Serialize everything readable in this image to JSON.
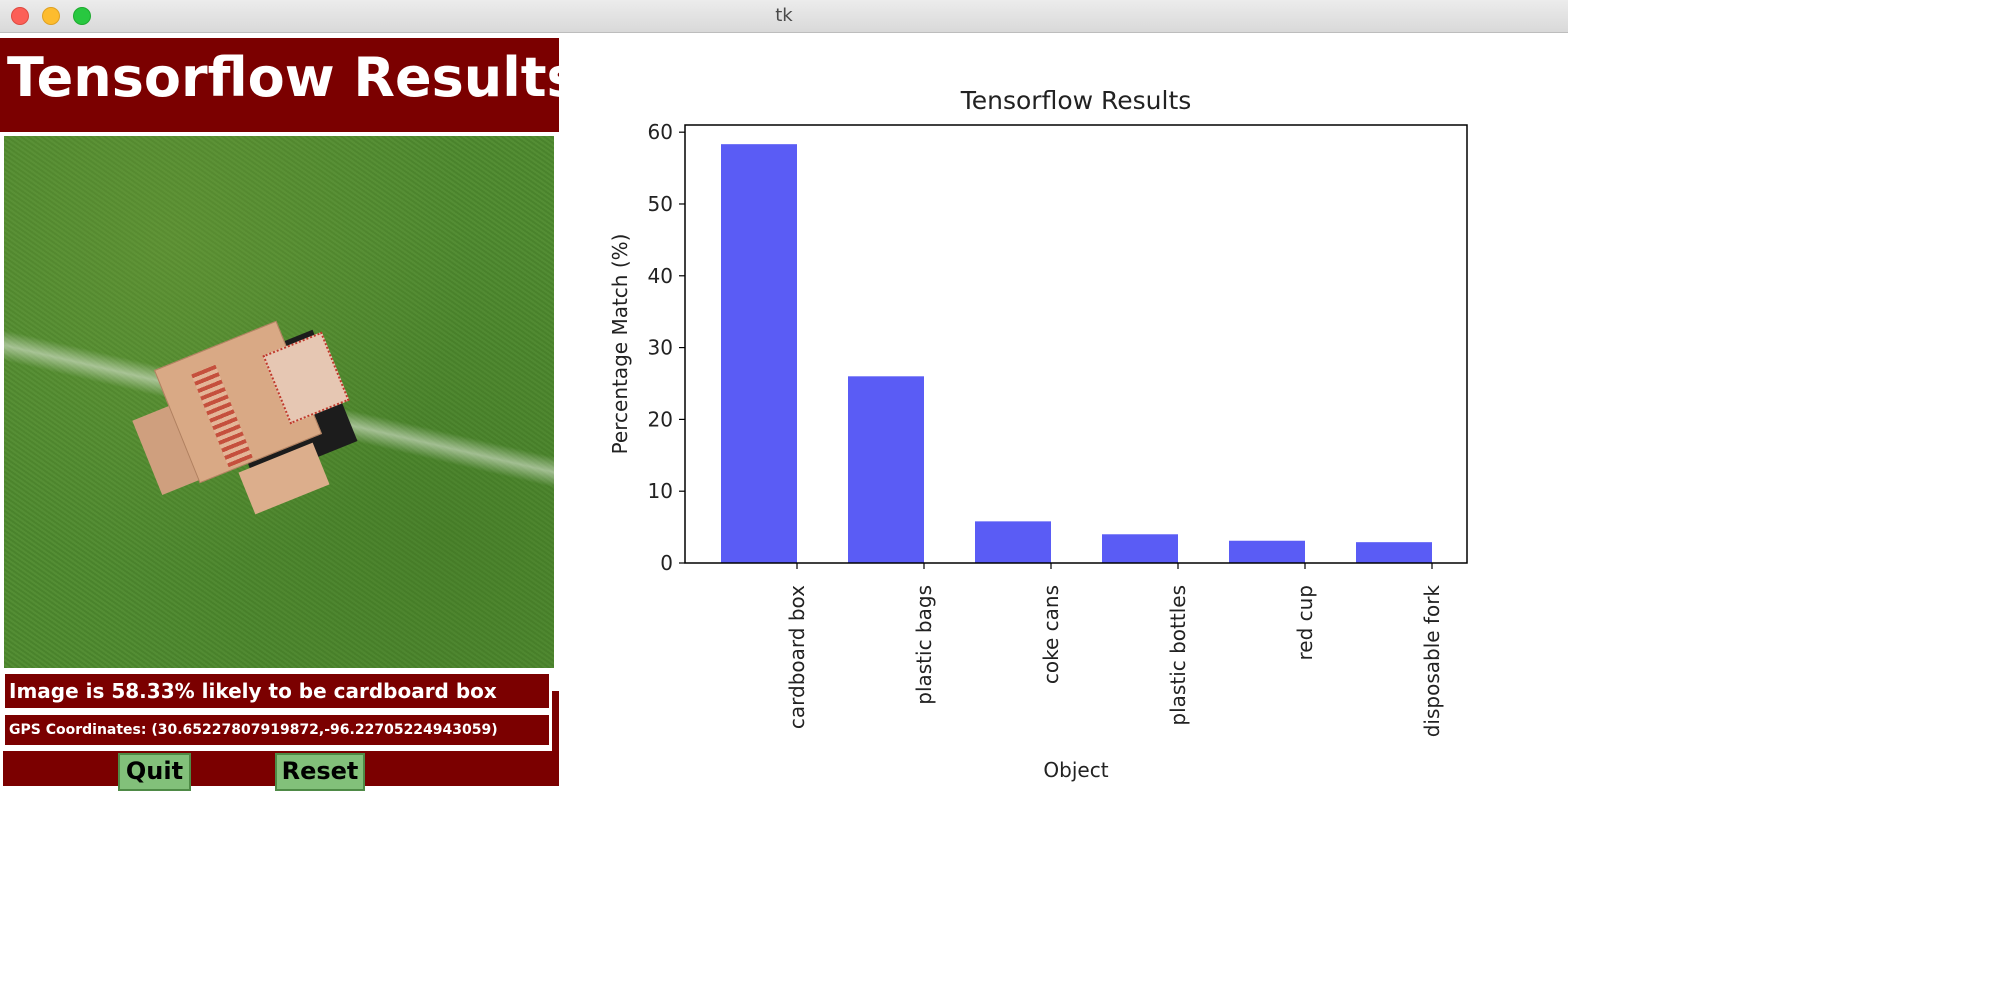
{
  "window": {
    "title": "tk"
  },
  "panel": {
    "title": "Tensorflow Results",
    "likely_text": "Image is 58.33% likely to be cardboard box",
    "gps_text": "GPS Coordinates: (30.65227807919872,-96.22705224943059)",
    "quit_label": "Quit",
    "reset_label": "Reset",
    "colors": {
      "panel_bg": "#7b0000",
      "button_bg": "#82c07a",
      "text": "#ffffff"
    }
  },
  "photo": {
    "subject": "cardboard box on grass"
  },
  "chart_data": {
    "type": "bar",
    "title": "Tensorflow Results",
    "xlabel": "Object",
    "ylabel": "Percentage Match (%)",
    "categories": [
      "cardboard box",
      "plastic bags",
      "coke cans",
      "plastic bottles",
      "red cup",
      "disposable fork"
    ],
    "values": [
      58.33,
      26.0,
      5.8,
      4.0,
      3.1,
      2.9
    ],
    "ylim": [
      0,
      61
    ],
    "yticks": [
      0,
      10,
      20,
      30,
      40,
      50,
      60
    ],
    "bar_color": "#5a5cf5",
    "grid": false,
    "legend": "none"
  }
}
